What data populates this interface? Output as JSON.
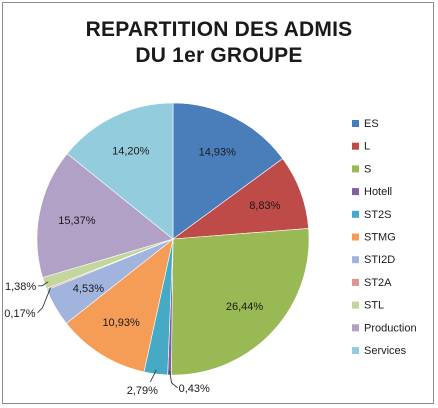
{
  "chart_data": {
    "type": "pie",
    "title_line1": "REPARTITION DES ADMIS",
    "title_line2": "DU 1er GROUPE",
    "slices": [
      {
        "name": "ES",
        "value": 14.93,
        "label": "14,93%",
        "color": "#4a7ebb"
      },
      {
        "name": "L",
        "value": 8.83,
        "label": "8,83%",
        "color": "#be4b48"
      },
      {
        "name": "S",
        "value": 26.44,
        "label": "26,44%",
        "color": "#98b954"
      },
      {
        "name": "Hotell",
        "value": 0.43,
        "label": "0,43%",
        "color": "#7d60a0"
      },
      {
        "name": "ST2S",
        "value": 2.79,
        "label": "2,79%",
        "color": "#46aac4"
      },
      {
        "name": "STMG",
        "value": 10.93,
        "label": "10,93%",
        "color": "#f59d56"
      },
      {
        "name": "STI2D",
        "value": 4.53,
        "label": "4,53%",
        "color": "#a0b4de"
      },
      {
        "name": "ST2A",
        "value": 0.17,
        "label": "0,17%",
        "color": "#d99694"
      },
      {
        "name": "STL",
        "value": 1.38,
        "label": "1,38%",
        "color": "#c3d69b"
      },
      {
        "name": "Production",
        "value": 15.37,
        "label": "15,37%",
        "color": "#b2a1c7"
      },
      {
        "name": "Services",
        "value": 14.2,
        "label": "14,20%",
        "color": "#93cddd"
      }
    ],
    "legend_position": "right"
  }
}
